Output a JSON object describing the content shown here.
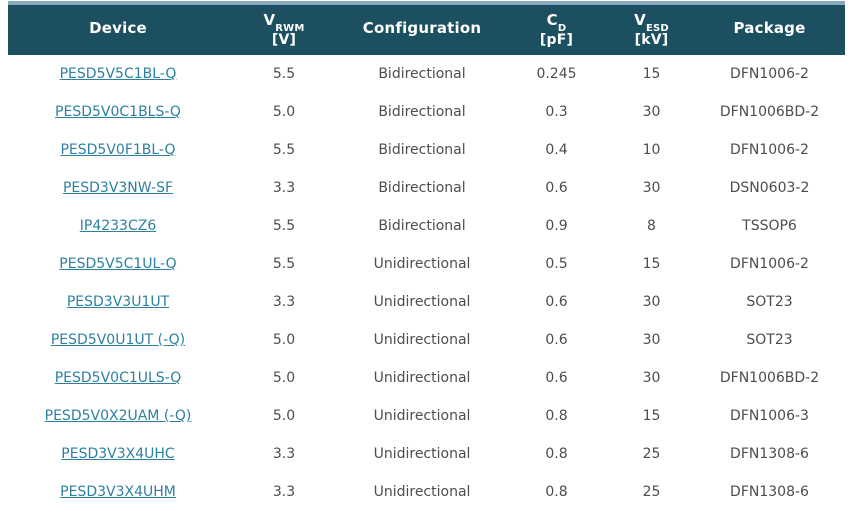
{
  "theme": {
    "header_bg": "#1c4f5f",
    "header_text": "#ffffff",
    "top_border": "#87abbd",
    "link_color": "#2e80a0",
    "cell_text": "#4d4d4d",
    "row_bg": "#ffffff"
  },
  "table": {
    "columns": [
      {
        "id": "device",
        "pre": "Device",
        "sub": "",
        "unit": ""
      },
      {
        "id": "vrwm",
        "pre": "V",
        "sub": "RWM",
        "unit": "[V]"
      },
      {
        "id": "configuration",
        "pre": "Configuration",
        "sub": "",
        "unit": ""
      },
      {
        "id": "cd",
        "pre": "C",
        "sub": "D",
        "unit": "[pF]"
      },
      {
        "id": "vesd",
        "pre": "V",
        "sub": "ESD",
        "unit": "[kV]"
      },
      {
        "id": "package",
        "pre": "Package",
        "sub": "",
        "unit": ""
      }
    ],
    "rows": [
      {
        "device": "PESD5V5C1BL-Q",
        "vrwm": "5.5",
        "configuration": "Bidirectional",
        "cd": "0.245",
        "vesd": "15",
        "package": "DFN1006-2"
      },
      {
        "device": "PESD5V0C1BLS-Q",
        "vrwm": "5.0",
        "configuration": "Bidirectional",
        "cd": "0.3",
        "vesd": "30",
        "package": "DFN1006BD-2"
      },
      {
        "device": "PESD5V0F1BL-Q",
        "vrwm": "5.5",
        "configuration": "Bidirectional",
        "cd": "0.4",
        "vesd": "10",
        "package": "DFN1006-2"
      },
      {
        "device": "PESD3V3NW-SF",
        "vrwm": "3.3",
        "configuration": "Bidirectional",
        "cd": "0.6",
        "vesd": "30",
        "package": "DSN0603-2"
      },
      {
        "device": "IP4233CZ6",
        "vrwm": "5.5",
        "configuration": "Bidirectional",
        "cd": "0.9",
        "vesd": "8",
        "package": "TSSOP6"
      },
      {
        "device": "PESD5V5C1UL-Q",
        "vrwm": "5.5",
        "configuration": "Unidirectional",
        "cd": "0.5",
        "vesd": "15",
        "package": "DFN1006-2"
      },
      {
        "device": "PESD3V3U1UT",
        "vrwm": "3.3",
        "configuration": "Unidirectional",
        "cd": "0.6",
        "vesd": "30",
        "package": "SOT23"
      },
      {
        "device": "PESD5V0U1UT (-Q)",
        "vrwm": "5.0",
        "configuration": "Unidirectional",
        "cd": "0.6",
        "vesd": "30",
        "package": "SOT23"
      },
      {
        "device": "PESD5V0C1ULS-Q",
        "vrwm": "5.0",
        "configuration": "Unidirectional",
        "cd": "0.6",
        "vesd": "30",
        "package": "DFN1006BD-2"
      },
      {
        "device": "PESD5V0X2UAM (-Q)",
        "vrwm": "5.0",
        "configuration": "Unidirectional",
        "cd": "0.8",
        "vesd": "15",
        "package": "DFN1006-3"
      },
      {
        "device": "PESD3V3X4UHC",
        "vrwm": "3.3",
        "configuration": "Unidirectional",
        "cd": "0.8",
        "vesd": "25",
        "package": "DFN1308-6"
      },
      {
        "device": "PESD3V3X4UHM",
        "vrwm": "3.3",
        "configuration": "Unidirectional",
        "cd": "0.8",
        "vesd": "25",
        "package": "DFN1308-6"
      }
    ]
  }
}
